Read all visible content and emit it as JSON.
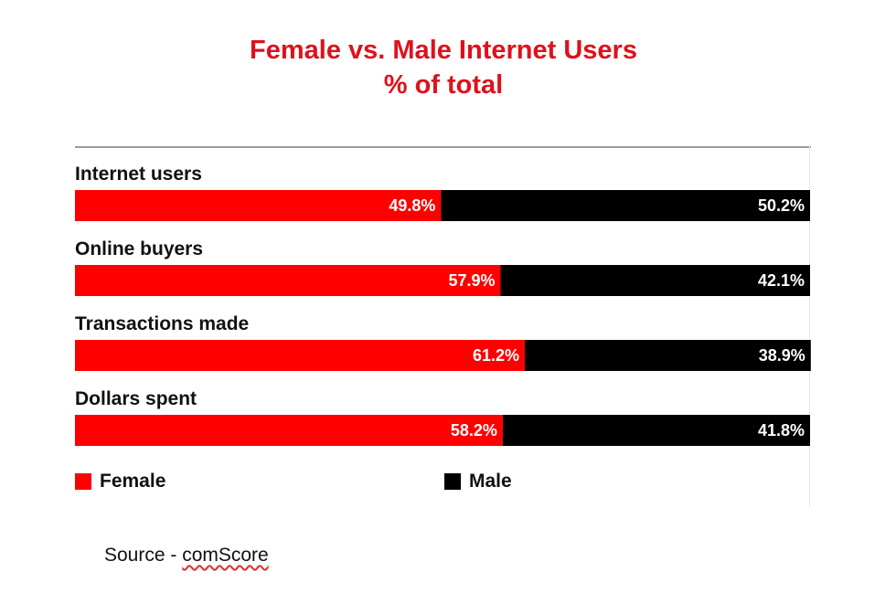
{
  "title": {
    "line1": "Female vs. Male Internet Users",
    "line2": "% of total"
  },
  "colors": {
    "female": "#ff0000",
    "male": "#000000",
    "title": "#e0101b"
  },
  "source": {
    "prefix": "Source - ",
    "brand": "comScore"
  },
  "chart_data": {
    "type": "bar",
    "orientation": "horizontal",
    "stacked": true,
    "title": "Female vs. Male Internet Users",
    "subtitle": "% of total",
    "categories": [
      "Internet users",
      "Online buyers",
      "Transactions made",
      "Dollars spent"
    ],
    "series": [
      {
        "name": "Female",
        "color": "#ff0000",
        "values": [
          49.8,
          57.9,
          61.2,
          58.2
        ],
        "labels": [
          "49.8%",
          "57.9%",
          "61.2%",
          "58.2%"
        ]
      },
      {
        "name": "Male",
        "color": "#000000",
        "values": [
          50.2,
          42.1,
          38.9,
          41.8
        ],
        "labels": [
          "50.2%",
          "42.1%",
          "38.9%",
          "41.8%"
        ]
      }
    ],
    "xlim": [
      0,
      100
    ],
    "grid": false,
    "legend": "bottom"
  }
}
